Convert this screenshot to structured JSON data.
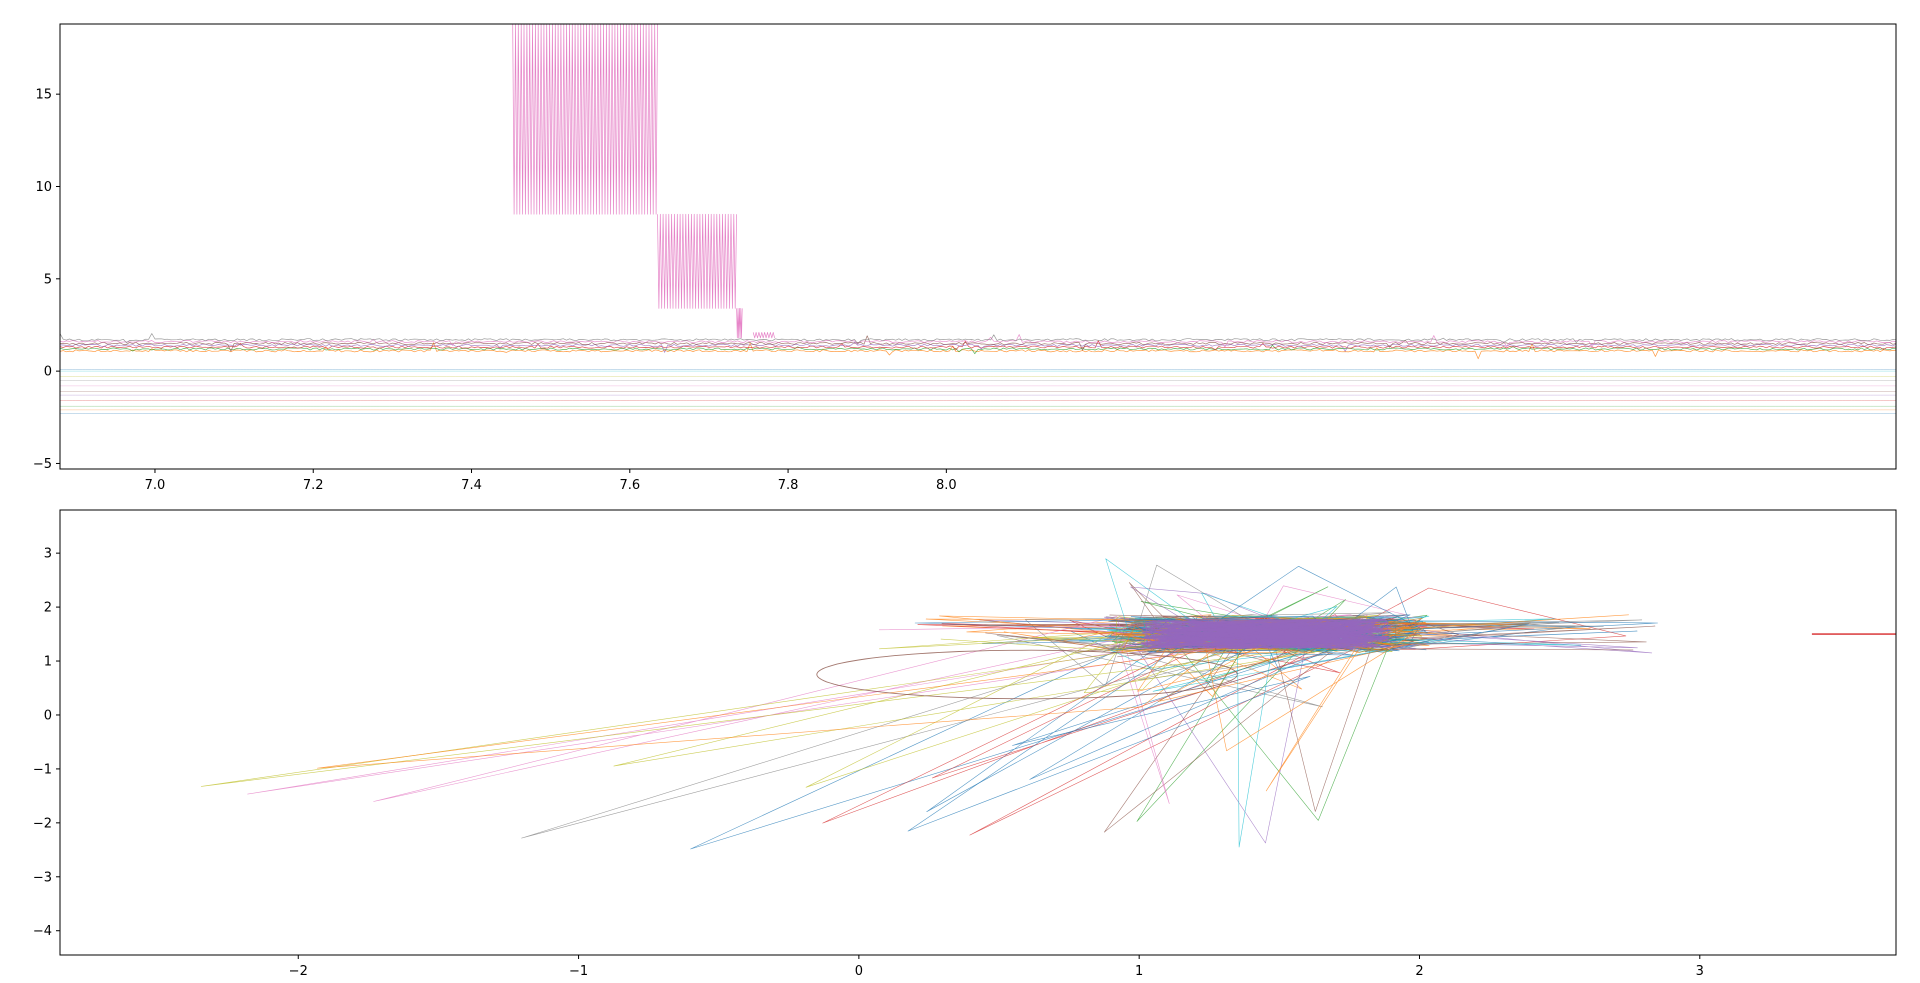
{
  "figure": {
    "title": "",
    "background": "#ffffff"
  },
  "palette": [
    "#1f77b4",
    "#ff7f0e",
    "#2ca02c",
    "#d62728",
    "#9467bd",
    "#8c564b",
    "#e377c2",
    "#7f7f7f",
    "#bcbd22",
    "#17becf"
  ],
  "chart_data": [
    {
      "type": "line",
      "title": "",
      "xlabel": "",
      "ylabel": "",
      "xlim": [
        6.88,
        9.2
      ],
      "ylim": [
        -5.3,
        18.8
      ],
      "xticks": [
        7.0,
        7.2,
        7.4,
        7.6,
        7.8,
        8.0
      ],
      "xtick_labels": [
        "7.0",
        "7.2",
        "7.4",
        "7.6",
        "7.8",
        "8.0"
      ],
      "yticks": [
        -5,
        0,
        5,
        10,
        15
      ],
      "ytick_labels": [
        "−5",
        "0",
        "5",
        "10",
        "15"
      ],
      "grid": false,
      "legend": "none",
      "series_description": "many thin overlapping time-series traces",
      "baseline_offsets": [
        -2.3,
        -2.1,
        -1.9,
        -1.6,
        -1.3,
        -1.1,
        -0.8,
        -0.5,
        -0.3,
        0.0,
        0.1,
        1.1,
        1.2,
        1.3,
        1.4,
        1.5,
        1.6,
        1.7
      ],
      "highlight_series": {
        "color": "#e377c2",
        "segments": [
          {
            "x": [
              7.452,
              7.635
            ],
            "low": 8.5,
            "high": 18.8
          },
          {
            "x": [
              7.635,
              7.735
            ],
            "low": 3.4,
            "high": 8.5
          },
          {
            "x": [
              7.735,
              7.742
            ],
            "low": 1.8,
            "high": 3.4
          },
          {
            "x": [
              7.756,
              7.783
            ],
            "low": 1.8,
            "high": 2.1
          }
        ]
      }
    },
    {
      "type": "line",
      "title": "",
      "xlabel": "",
      "ylabel": "",
      "xlim": [
        -2.85,
        3.7
      ],
      "ylim": [
        -4.45,
        3.8
      ],
      "xticks": [
        -2,
        -1,
        0,
        1,
        2,
        3
      ],
      "xtick_labels": [
        "−2",
        "−1",
        "0",
        "1",
        "2",
        "3"
      ],
      "yticks": [
        -4,
        -3,
        -2,
        -1,
        0,
        1,
        2,
        3
      ],
      "ytick_labels": [
        "−4",
        "−3",
        "−2",
        "−1",
        "0",
        "1",
        "2",
        "3"
      ],
      "grid": false,
      "legend": "none",
      "series_description": "trajectory traces with a dense cluster",
      "cluster": {
        "center": [
          1.45,
          1.5
        ],
        "spread": [
          0.45,
          0.28
        ],
        "color": "#9467bd"
      },
      "orbit": {
        "center": [
          0.6,
          0.75
        ],
        "radius": [
          0.75,
          0.45
        ],
        "color": "#8c564b"
      },
      "right_edge_segment": {
        "x": [
          3.4,
          3.7
        ],
        "y": 1.5,
        "color": "#d62728"
      }
    }
  ]
}
